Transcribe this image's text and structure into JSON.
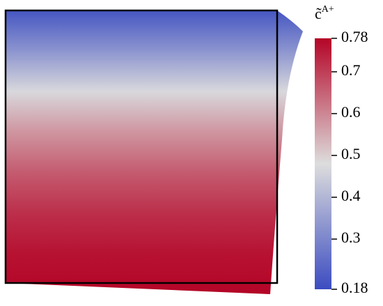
{
  "chart_data": {
    "type": "colormap",
    "title": "c̃",
    "title_superscript": "A+",
    "profile_values": [
      0.2,
      0.33,
      0.47,
      0.58,
      0.66,
      0.72,
      0.76,
      0.78
    ],
    "clim": [
      0.18,
      0.78
    ],
    "cticks": [
      0.18,
      0.3,
      0.4,
      0.5,
      0.6,
      0.7,
      0.78
    ],
    "colormap": [
      "#3b4cc0",
      "#dddddd",
      "#b40426"
    ]
  }
}
